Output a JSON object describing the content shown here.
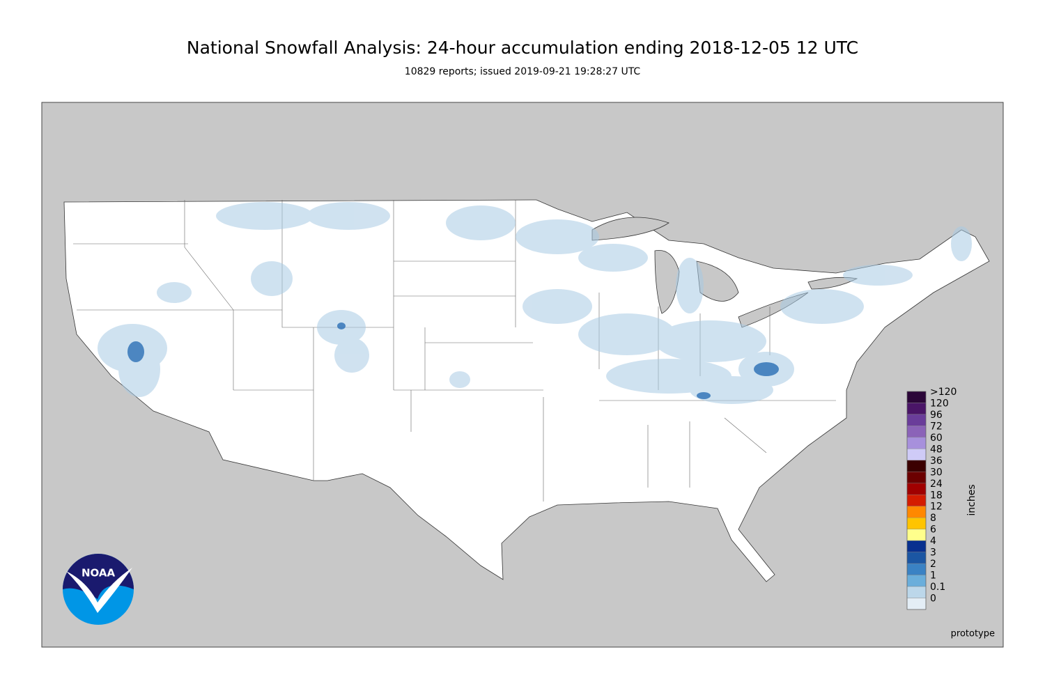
{
  "header": {
    "title": "National Snowfall Analysis: 24-hour accumulation ending 2018-12-05 12 UTC",
    "subtitle": "10829 reports; issued 2019-09-21 19:28:27 UTC"
  },
  "legend": {
    "title": "inches",
    "items": [
      {
        "label": ">120",
        "color": "#2b0638"
      },
      {
        "label": "120",
        "color": "#4a1567"
      },
      {
        "label": "96",
        "color": "#6a3d9a"
      },
      {
        "label": "72",
        "color": "#8b63b8"
      },
      {
        "label": "60",
        "color": "#a790dc"
      },
      {
        "label": "48",
        "color": "#cfcbf7"
      },
      {
        "label": "36",
        "color": "#3b0000"
      },
      {
        "label": "30",
        "color": "#6b0000"
      },
      {
        "label": "24",
        "color": "#a00000"
      },
      {
        "label": "18",
        "color": "#d41c00"
      },
      {
        "label": "12",
        "color": "#ff8800"
      },
      {
        "label": "8",
        "color": "#ffc400"
      },
      {
        "label": "6",
        "color": "#ffff8c"
      },
      {
        "label": "4",
        "color": "#08308f"
      },
      {
        "label": "3",
        "color": "#1b56a3"
      },
      {
        "label": "2",
        "color": "#3a82c4"
      },
      {
        "label": "1",
        "color": "#6aaedb"
      },
      {
        "label": "0.1",
        "color": "#bcd7ea"
      },
      {
        "label": "0",
        "color": "#e4eef6"
      }
    ]
  },
  "logo": "NOAA",
  "footer": "prototype"
}
